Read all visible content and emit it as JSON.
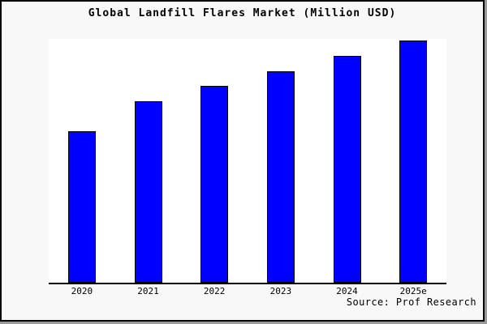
{
  "chart_data": {
    "type": "bar",
    "title": "Global Landfill Flares Market (Million USD)",
    "categories": [
      "2020",
      "2021",
      "2022",
      "2023",
      "2024",
      "2025e"
    ],
    "values": [
      62.1,
      74.4,
      80.7,
      86.7,
      93.0,
      99.3
    ],
    "value_note": "no y-axis tick labels shown; values are relative bar heights in % of plot height",
    "xlabel": "",
    "ylabel": "",
    "ylim": [
      0,
      100
    ],
    "grid": false,
    "legend": false,
    "bar_color": "#0000ff",
    "bar_border_color": "#000000"
  },
  "footer": {
    "source": "Source: Prof Research"
  },
  "colors": {
    "page_background": "#f8f8f8",
    "plot_background": "#ffffff",
    "border": "#000000",
    "shadow": "#9a9a9a",
    "axis": "#000000",
    "bar": "#0000ff"
  }
}
